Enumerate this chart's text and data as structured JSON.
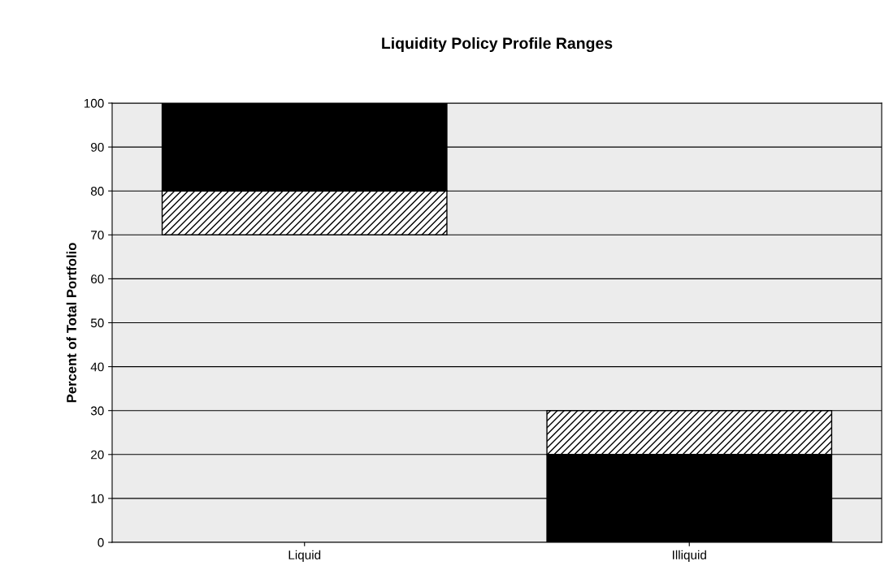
{
  "chart_data": {
    "type": "bar",
    "title": "Liquidity Policy Profile Ranges",
    "ylabel": "Percent of Total Portfolio",
    "categories": [
      "Liquid",
      "Illiquid"
    ],
    "series": [
      {
        "color": "#000000",
        "values": [
          20,
          20
        ],
        "base": [
          80,
          0
        ]
      },
      {
        "color": "#000000",
        "values": [
          10,
          10
        ],
        "base": [
          70,
          20
        ]
      }
    ],
    "ylim": [
      0,
      100
    ],
    "yticks": [
      0,
      10,
      20,
      30,
      40,
      50,
      60,
      70,
      80,
      90,
      100
    ],
    "grid": "y"
  }
}
